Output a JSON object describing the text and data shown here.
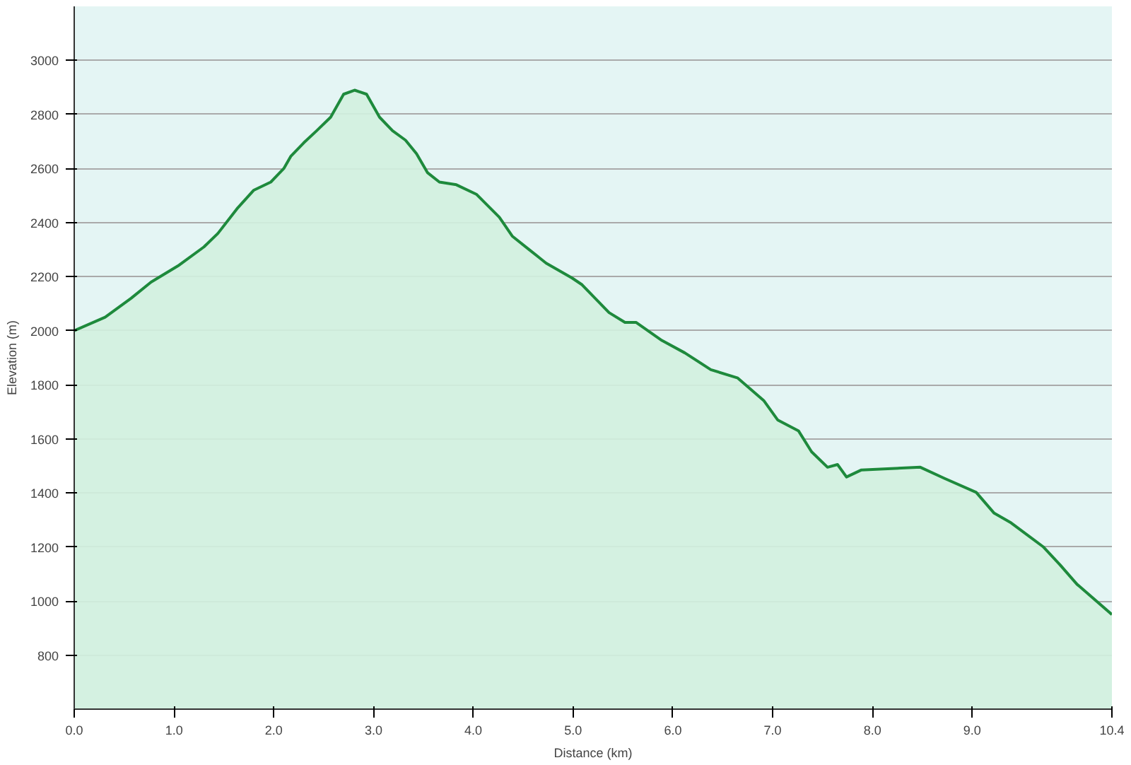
{
  "chart_data": {
    "type": "area",
    "xlabel": "Distance (km)",
    "ylabel": "Elevation (m)",
    "x": [
      0,
      0.31,
      0.57,
      0.77,
      1.04,
      1.3,
      1.44,
      1.64,
      1.8,
      1.97,
      2.1,
      2.17,
      2.3,
      2.43,
      2.57,
      2.7,
      2.81,
      2.93,
      3.06,
      3.19,
      3.32,
      3.43,
      3.54,
      3.66,
      3.83,
      4.03,
      4.26,
      4.39,
      4.56,
      4.73,
      4.99,
      5.09,
      5.36,
      5.52,
      5.63,
      5.89,
      6.12,
      6.38,
      6.65,
      6.91,
      7.05,
      7.26,
      7.39,
      7.55,
      7.65,
      7.74,
      7.89,
      8.19,
      8.48,
      8.72,
      9.04,
      9.22,
      9.39,
      9.71,
      9.88,
      10.05,
      10.4
    ],
    "series": [
      {
        "color": "#1e8a3c",
        "values": [
          2000,
          2050,
          2120,
          2180,
          2240,
          2310,
          2360,
          2455,
          2520,
          2550,
          2600,
          2645,
          2695,
          2740,
          2790,
          2875,
          2890,
          2875,
          2790,
          2740,
          2705,
          2655,
          2585,
          2550,
          2540,
          2505,
          2420,
          2350,
          2300,
          2250,
          2195,
          2170,
          2067,
          2031,
          2031,
          1964,
          1918,
          1856,
          1825,
          1742,
          1670,
          1629,
          1552,
          1495,
          1505,
          1459,
          1485,
          1490,
          1495,
          1454,
          1402,
          1325,
          1289,
          1201,
          1134,
          1062,
          950
        ]
      }
    ],
    "xlim": [
      0,
      10.4
    ],
    "ylim": [
      600,
      3200
    ],
    "xticks": [
      {
        "value": 0,
        "label": "0.0"
      },
      {
        "value": 1,
        "label": "1.0"
      },
      {
        "value": 2,
        "label": "2.0"
      },
      {
        "value": 3,
        "label": "3.0"
      },
      {
        "value": 4,
        "label": "4.0"
      },
      {
        "value": 5,
        "label": "5.0"
      },
      {
        "value": 6,
        "label": "6.0"
      },
      {
        "value": 7,
        "label": "7.0"
      },
      {
        "value": 8,
        "label": "8.0"
      },
      {
        "value": 9,
        "label": "9.0"
      },
      {
        "value": 10.4,
        "label": "10.4"
      }
    ],
    "yticks": [
      800,
      1000,
      1200,
      1400,
      1600,
      1800,
      2000,
      2200,
      2400,
      2600,
      2800,
      3000
    ],
    "grid": "y"
  }
}
